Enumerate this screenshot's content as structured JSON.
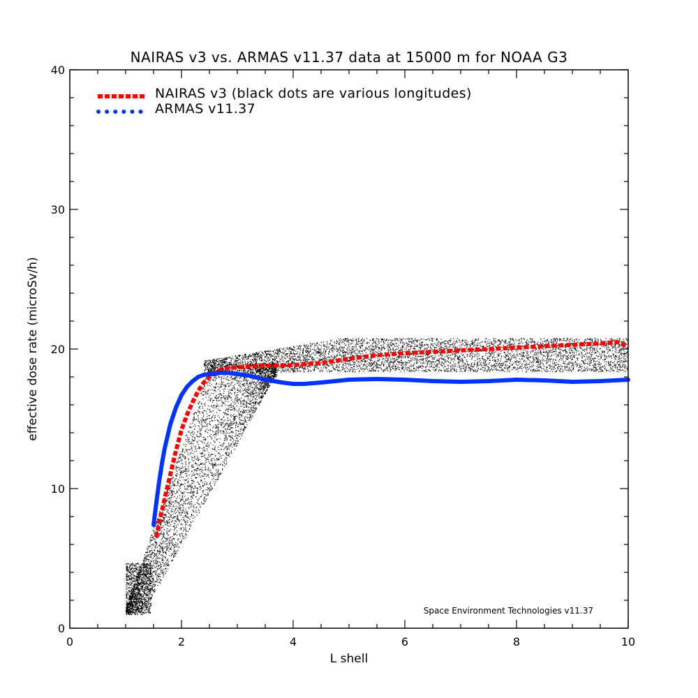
{
  "chart_data": {
    "type": "line",
    "title": "NAIRAS  v3 vs. ARMAS v11.37 data at 15000 m for NOAA G3",
    "xlabel": "L shell",
    "ylabel": "effective dose rate (microSv/h)",
    "xlim": [
      0,
      10
    ],
    "ylim": [
      0,
      40
    ],
    "x_ticks": [
      "0",
      "2",
      "4",
      "6",
      "8",
      "10"
    ],
    "y_ticks": [
      "0",
      "10",
      "20",
      "30",
      "40"
    ],
    "grid": false,
    "legend_position": "top-left",
    "credit": "Space Environment Technologies v11.37",
    "series": [
      {
        "name": "NAIRAS v3 (black dots are various longitudes)",
        "color": "#ff0000",
        "style": "dashed-thick",
        "x": [
          1.55,
          1.6,
          1.7,
          1.8,
          1.9,
          2.0,
          2.1,
          2.2,
          2.3,
          2.4,
          2.5,
          2.6,
          2.7,
          2.8,
          3.0,
          3.2,
          3.5,
          4.0,
          4.5,
          5.0,
          5.5,
          6.0,
          6.5,
          7.0,
          7.5,
          8.0,
          8.5,
          9.0,
          9.5,
          9.8,
          10.0
        ],
        "y": [
          6.5,
          7.5,
          9.3,
          11.0,
          12.7,
          14.2,
          15.3,
          16.2,
          17.0,
          17.6,
          18.0,
          18.3,
          18.5,
          18.6,
          18.7,
          18.75,
          18.8,
          18.85,
          19.0,
          19.3,
          19.55,
          19.7,
          19.8,
          19.9,
          20.0,
          20.1,
          20.2,
          20.3,
          20.4,
          20.5,
          20.2
        ]
      },
      {
        "name": "ARMAS v11.37",
        "color": "#0033ff",
        "style": "solid-thick",
        "x": [
          1.5,
          1.55,
          1.6,
          1.65,
          1.7,
          1.8,
          1.9,
          2.0,
          2.1,
          2.2,
          2.3,
          2.4,
          2.5,
          2.6,
          2.7,
          2.8,
          3.0,
          3.2,
          3.5,
          3.8,
          4.0,
          4.2,
          4.5,
          5.0,
          5.5,
          6.0,
          6.5,
          7.0,
          7.5,
          8.0,
          8.5,
          9.0,
          9.5,
          10.0
        ],
        "y": [
          7.4,
          9.0,
          10.5,
          11.8,
          12.9,
          14.6,
          15.8,
          16.7,
          17.3,
          17.7,
          18.0,
          18.15,
          18.2,
          18.2,
          18.3,
          18.3,
          18.2,
          18.1,
          17.8,
          17.6,
          17.5,
          17.5,
          17.6,
          17.8,
          17.85,
          17.8,
          17.7,
          17.65,
          17.7,
          17.8,
          17.75,
          17.65,
          17.7,
          17.8
        ]
      }
    ]
  }
}
